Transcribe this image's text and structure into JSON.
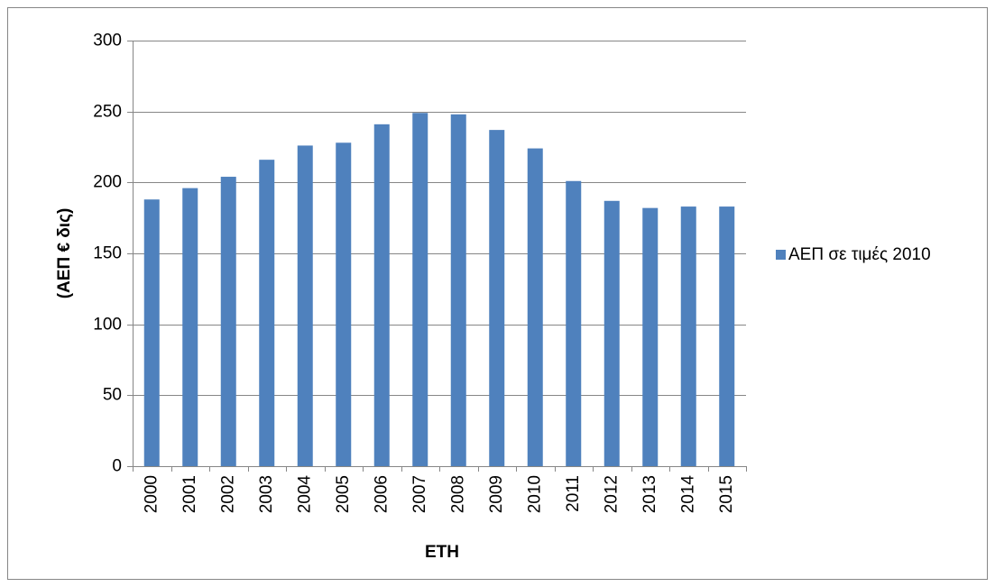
{
  "chart_data": {
    "type": "bar",
    "x_label": "ΕΤΗ",
    "y_label": "(ΑΕΠ € δις)",
    "categories": [
      "2000",
      "2001",
      "2002",
      "2003",
      "2004",
      "2005",
      "2006",
      "2007",
      "2008",
      "2009",
      "2010",
      "2011",
      "2012",
      "2013",
      "2014",
      "2015"
    ],
    "series": [
      {
        "name": "ΑΕΠ σε τιμές 2010",
        "color": "#4f81bd",
        "values": [
          188,
          196,
          204,
          216,
          226,
          228,
          241,
          249,
          248,
          237,
          224,
          201,
          187,
          182,
          183,
          183
        ]
      }
    ],
    "ylim": [
      0,
      300
    ],
    "yticks": [
      0,
      50,
      100,
      150,
      200,
      250,
      300
    ],
    "grid": true,
    "legend": "right"
  }
}
